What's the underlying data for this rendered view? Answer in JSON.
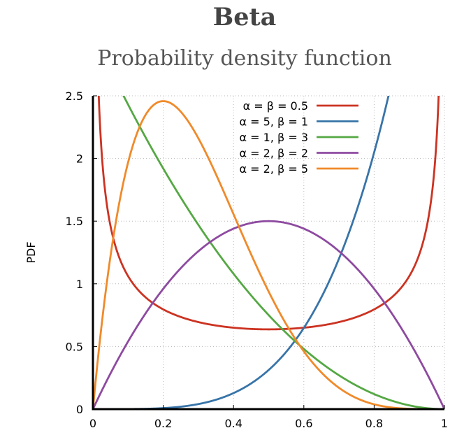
{
  "chart_data": {
    "type": "line",
    "title": "Beta",
    "subtitle": "Probability density function",
    "xlabel": "",
    "ylabel": "PDF",
    "xlim": [
      0,
      1
    ],
    "ylim": [
      0,
      2.5
    ],
    "grid": true,
    "legend_position": "top-right",
    "x_ticks": [
      "0",
      "0.2",
      "0.4",
      "0.6",
      "0.8",
      "1"
    ],
    "y_ticks": [
      "0",
      "0.5",
      "1",
      "1.5",
      "2",
      "2.5"
    ],
    "series": [
      {
        "name": "α = β = 0.5",
        "alpha": 0.5,
        "beta": 0.5,
        "color": "#cc3322"
      },
      {
        "name": "α = 5, β = 1",
        "alpha": 5,
        "beta": 1,
        "color": "#3874a8"
      },
      {
        "name": "α = 1, β = 3",
        "alpha": 1,
        "beta": 3,
        "color": "#55a844"
      },
      {
        "name": "α = 2, β = 2",
        "alpha": 2,
        "beta": 2,
        "color": "#8e4aa0"
      },
      {
        "name": "α = 2, β = 5",
        "alpha": 2,
        "beta": 5,
        "color": "#f08a2a"
      }
    ]
  }
}
